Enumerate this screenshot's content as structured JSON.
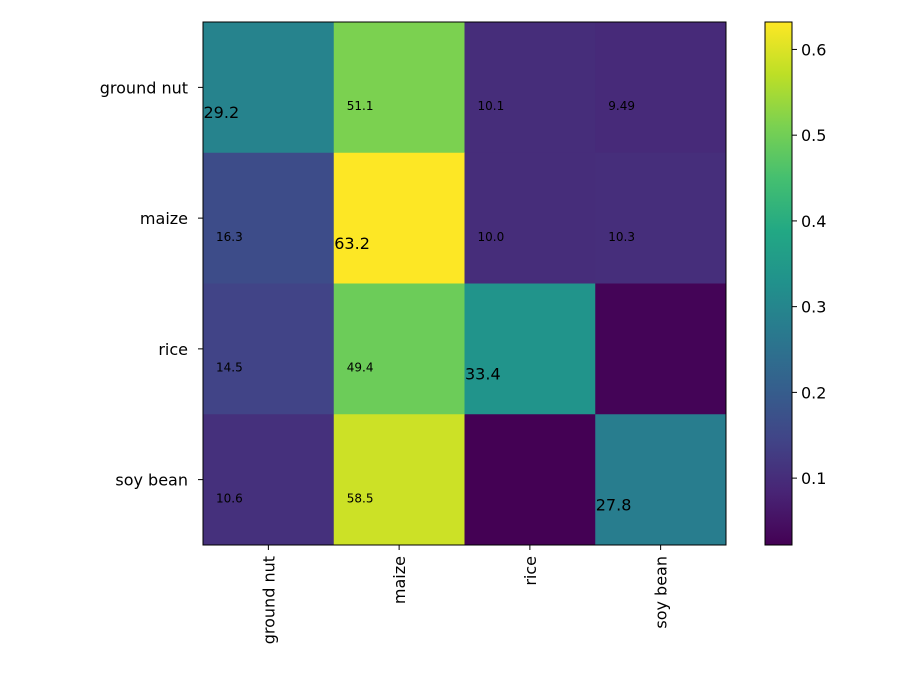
{
  "chart_data": {
    "type": "heatmap",
    "title": "",
    "xlabel": "",
    "ylabel": "",
    "rows": [
      "ground nut",
      "maize",
      "rice",
      "soy bean"
    ],
    "cols": [
      "ground nut",
      "maize",
      "rice",
      "soy bean"
    ],
    "values": [
      [
        0.292,
        0.511,
        0.101,
        0.0949
      ],
      [
        0.163,
        0.632,
        0.1,
        0.103
      ],
      [
        0.145,
        0.494,
        0.334,
        0.027
      ],
      [
        0.106,
        0.585,
        0.022,
        0.278
      ]
    ],
    "cell_labels": [
      [
        "29.2",
        "51.1",
        "10.1",
        "9.49"
      ],
      [
        "16.3",
        "63.2",
        "10.0",
        "10.3"
      ],
      [
        "14.5",
        "49.4",
        "33.4",
        ""
      ],
      [
        "10.6",
        "58.5",
        "",
        "27.8"
      ]
    ],
    "diagonal_emphasis": true,
    "colormap": "viridis",
    "colorbar": {
      "range": [
        0.022,
        0.632
      ],
      "ticks": [
        0.1,
        0.2,
        0.3,
        0.4,
        0.5,
        0.6
      ],
      "tick_labels": [
        "0.1",
        "0.2",
        "0.3",
        "0.4",
        "0.5",
        "0.6"
      ]
    }
  }
}
